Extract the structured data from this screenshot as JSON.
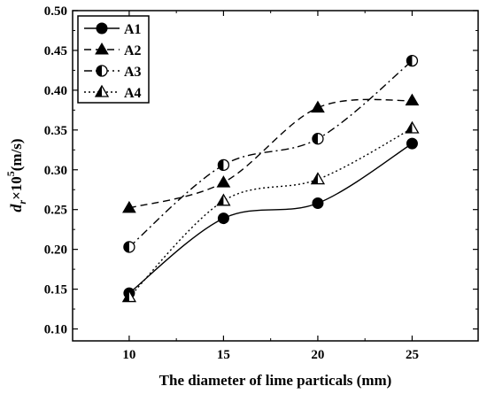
{
  "chart_data": {
    "type": "line",
    "xlabel": "The diameter of lime particals (mm)",
    "ylabel_main": "d",
    "ylabel_sub": "r",
    "ylabel_mid": "×10",
    "ylabel_sup": "5",
    "ylabel_unit": "(m/s)",
    "x": [
      10,
      15,
      20,
      25
    ],
    "xticks": [
      "10",
      "15",
      "20",
      "25"
    ],
    "xlim": [
      7,
      28.5
    ],
    "yticks": [
      "0.10",
      "0.15",
      "0.20",
      "0.25",
      "0.30",
      "0.35",
      "0.40",
      "0.45",
      "0.50"
    ],
    "ylim": [
      0.085,
      0.5
    ],
    "grid": false,
    "legend_position": "top-left",
    "series": [
      {
        "name": "A1",
        "values": [
          0.145,
          0.239,
          0.258,
          0.333
        ],
        "marker": "circle",
        "line": "solid"
      },
      {
        "name": "A2",
        "values": [
          0.252,
          0.284,
          0.378,
          0.387
        ],
        "marker": "triangle",
        "line": "dashed"
      },
      {
        "name": "A3",
        "values": [
          0.203,
          0.306,
          0.339,
          0.437
        ],
        "marker": "half-circle",
        "line": "dashdot"
      },
      {
        "name": "A4",
        "values": [
          0.14,
          0.261,
          0.288,
          0.352
        ],
        "marker": "half-triangle",
        "line": "dotted"
      }
    ]
  }
}
